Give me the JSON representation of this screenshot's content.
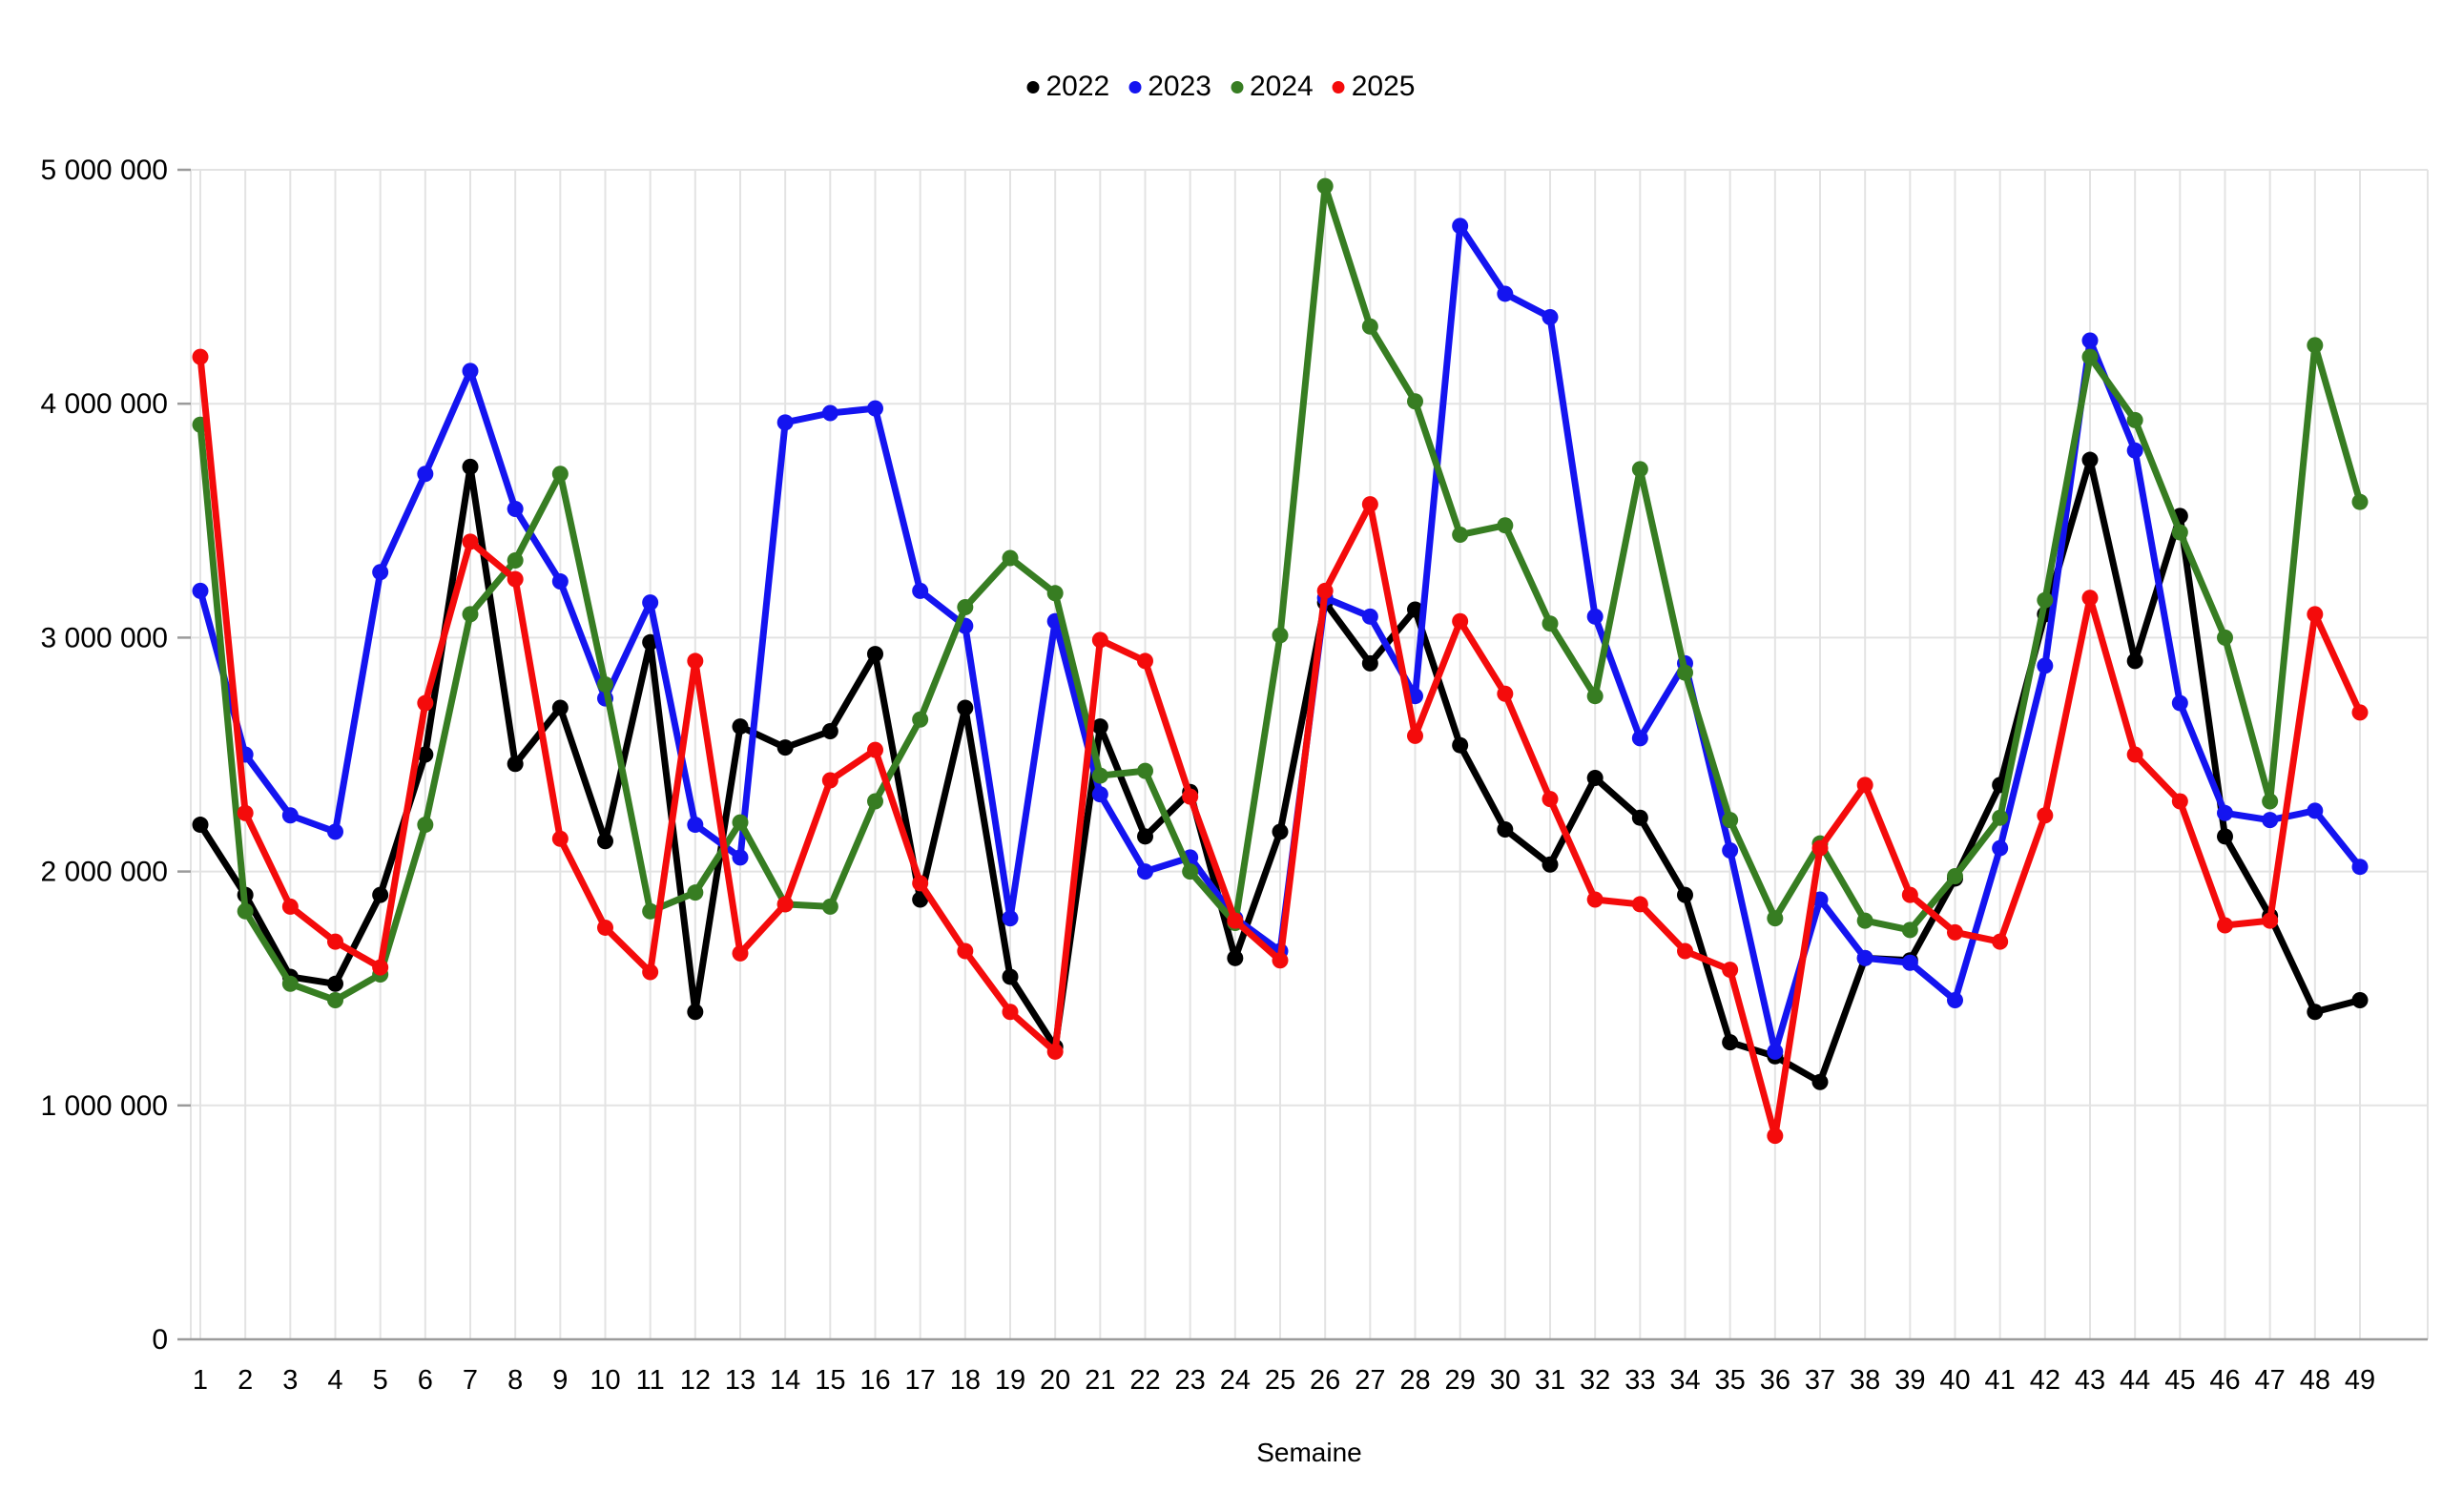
{
  "chart_data": {
    "type": "line",
    "title": "",
    "xlabel": "Semaine",
    "ylabel": "",
    "x": [
      1,
      2,
      3,
      4,
      5,
      6,
      7,
      8,
      9,
      10,
      11,
      12,
      13,
      14,
      15,
      16,
      17,
      18,
      19,
      20,
      21,
      22,
      23,
      24,
      25,
      26,
      27,
      28,
      29,
      30,
      31,
      32,
      33,
      34,
      35,
      36,
      37,
      38,
      39,
      40,
      41,
      42,
      43,
      44,
      45,
      46,
      47,
      48,
      49
    ],
    "ylim": [
      0,
      5000000
    ],
    "grid": true,
    "legend_position": "top-center",
    "yticks": [
      {
        "value": 0,
        "label": "0"
      },
      {
        "value": 1000000,
        "label": "1 000 000"
      },
      {
        "value": 2000000,
        "label": "2 000 000"
      },
      {
        "value": 3000000,
        "label": "3 000 000"
      },
      {
        "value": 4000000,
        "label": "4 000 000"
      },
      {
        "value": 5000000,
        "label": "5 000 000"
      }
    ],
    "series": [
      {
        "name": "2022",
        "color": "#000000",
        "values": [
          2200000,
          1900000,
          1550000,
          1520000,
          1900000,
          2500000,
          3730000,
          2460000,
          2700000,
          2130000,
          2980000,
          1400000,
          2620000,
          2530000,
          2600000,
          2930000,
          1880000,
          2700000,
          1550000,
          1250000,
          2620000,
          2150000,
          2340000,
          1630000,
          2170000,
          3150000,
          2890000,
          3120000,
          2540000,
          2180000,
          2030000,
          2400000,
          2230000,
          1900000,
          1270000,
          1210000,
          1100000,
          1630000,
          1620000,
          1970000,
          2370000,
          3100000,
          3760000,
          2900000,
          3520000,
          2150000,
          1810000,
          1400000,
          1450000
        ]
      },
      {
        "name": "2023",
        "color": "#1414f0",
        "values": [
          3200000,
          2500000,
          2240000,
          2170000,
          3280000,
          3700000,
          4140000,
          3550000,
          3240000,
          2740000,
          3150000,
          2200000,
          2060000,
          3920000,
          3960000,
          3980000,
          3200000,
          3050000,
          1800000,
          3070000,
          2330000,
          2000000,
          2060000,
          1800000,
          1660000,
          3170000,
          3090000,
          2750000,
          4760000,
          4470000,
          4370000,
          3090000,
          2570000,
          2890000,
          2090000,
          1230000,
          1880000,
          1630000,
          1610000,
          1450000,
          2100000,
          2880000,
          4270000,
          3800000,
          2720000,
          2250000,
          2220000,
          2260000,
          2020000
        ]
      },
      {
        "name": "2024",
        "color": "#377d22",
        "values": [
          3910000,
          1830000,
          1520000,
          1450000,
          1560000,
          2200000,
          3100000,
          3330000,
          3700000,
          2800000,
          1830000,
          1910000,
          2210000,
          1860000,
          1850000,
          2300000,
          2650000,
          3130000,
          3340000,
          3190000,
          2410000,
          2430000,
          2000000,
          1780000,
          3010000,
          4930000,
          4330000,
          4010000,
          3440000,
          3480000,
          3060000,
          2750000,
          3720000,
          2850000,
          2220000,
          1800000,
          2120000,
          1790000,
          1750000,
          1980000,
          2230000,
          3160000,
          4200000,
          3930000,
          3450000,
          3000000,
          2300000,
          4250000,
          3580000
        ]
      },
      {
        "name": "2025",
        "color": "#f40b0b",
        "values": [
          4200000,
          2250000,
          1850000,
          1700000,
          1590000,
          2720000,
          3410000,
          3250000,
          2140000,
          1760000,
          1570000,
          2900000,
          1650000,
          1860000,
          2390000,
          2520000,
          1950000,
          1660000,
          1400000,
          1230000,
          2990000,
          2900000,
          2320000,
          1790000,
          1620000,
          3200000,
          3570000,
          2580000,
          3070000,
          2760000,
          2310000,
          1880000,
          1860000,
          1660000,
          1580000,
          870000,
          2100000,
          2370000,
          1900000,
          1740000,
          1700000,
          2240000,
          3170000,
          2500000,
          2300000,
          1770000,
          1790000,
          3100000,
          2680000
        ]
      }
    ]
  },
  "styles": {
    "background": "#ffffff",
    "gridline": "#e3e3e3",
    "axis_line": "#9b9b9b",
    "tick_color": "#9b9b9b",
    "text_color": "#000000"
  }
}
